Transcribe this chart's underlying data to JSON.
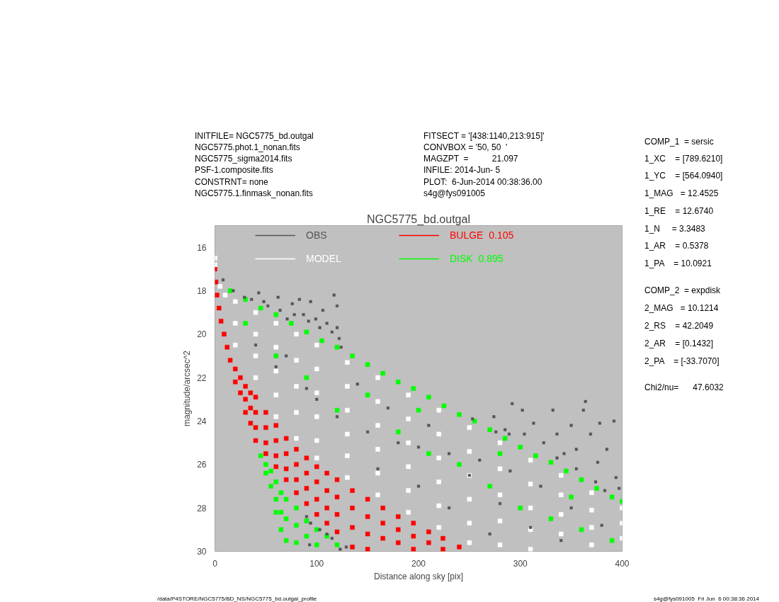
{
  "chart_data": {
    "type": "scatter",
    "title": "NGC5775_bd.outgal",
    "xlabel": "Distance along sky [pix]",
    "ylabel": "magnitude/arcsec^2",
    "xlim": [
      0,
      400
    ],
    "xticks": [
      0,
      100,
      200,
      300,
      400
    ],
    "ylim": [
      30,
      15
    ],
    "yticks": [
      16,
      18,
      20,
      22,
      24,
      26,
      28,
      30
    ],
    "grid": false,
    "legend": "top",
    "marker": "square",
    "series": [
      {
        "name": "OBS",
        "color": "#555555",
        "x": [
          8,
          18,
          29,
          36,
          43,
          48,
          52,
          62,
          64,
          71,
          76,
          78,
          83,
          87,
          92,
          94,
          99,
          103,
          106,
          110,
          115,
          117,
          120,
          120,
          122,
          124,
          253,
          274,
          276,
          285,
          289,
          292,
          302,
          304,
          313,
          323,
          332,
          336,
          336,
          343,
          350,
          355,
          355,
          362,
          364,
          369,
          374,
          376,
          378,
          383,
          385,
          392,
          394,
          397,
          40,
          60,
          70,
          90,
          100,
          120,
          140,
          150,
          160,
          170,
          180,
          200,
          200,
          210,
          230,
          230,
          250,
          260,
          270,
          280,
          290,
          310,
          320,
          340,
          350,
          380,
          90,
          93,
          94,
          103,
          110,
          115,
          123,
          129
        ],
        "values": [
          17.5,
          18.0,
          18.3,
          18.4,
          18.1,
          18.5,
          18.7,
          18.3,
          18.9,
          19.3,
          18.6,
          19.1,
          18.4,
          19.1,
          19.4,
          18.5,
          19.3,
          19.7,
          18.9,
          19.5,
          19.9,
          18.2,
          18.7,
          19.7,
          20.2,
          20.6,
          23.9,
          23.8,
          24.5,
          24.4,
          24.6,
          23.2,
          23.5,
          24.6,
          24.1,
          25.0,
          23.5,
          24.6,
          25.7,
          25.5,
          24.2,
          25.3,
          26.2,
          23.5,
          23.1,
          24.6,
          26.8,
          25.9,
          24.1,
          27.2,
          25.3,
          24.0,
          26.6,
          27.1,
          20.5,
          21.5,
          21.0,
          22.5,
          23.0,
          23.8,
          22.3,
          24.5,
          26.2,
          23.4,
          25.0,
          25.2,
          27.0,
          24.2,
          25.5,
          28.0,
          26.5,
          25.8,
          29.2,
          27.8,
          26.3,
          28.9,
          27.0,
          29.5,
          28.0,
          28.8,
          28.4,
          29.7,
          28.7,
          29.0,
          29.2,
          29.4,
          29.9,
          29.8
        ]
      },
      {
        "name": "MODEL",
        "color": "#ffffff",
        "x": [
          0,
          0,
          5,
          10,
          20,
          20,
          20,
          40,
          40,
          40,
          40,
          60,
          60,
          60,
          60,
          60,
          80,
          80,
          80,
          80,
          80,
          100,
          100,
          100,
          100,
          100,
          100,
          130,
          130,
          130,
          130,
          130,
          130,
          160,
          160,
          160,
          160,
          160,
          160,
          190,
          190,
          190,
          190,
          190,
          190,
          220,
          220,
          220,
          220,
          220,
          220,
          250,
          250,
          250,
          250,
          250,
          250,
          280,
          280,
          280,
          280,
          280,
          310,
          310,
          310,
          310,
          310,
          340,
          340,
          340,
          340,
          370,
          370,
          370,
          370,
          400,
          400,
          400
        ],
        "values": [
          16.5,
          16.8,
          17.8,
          18.2,
          18.5,
          19.5,
          20.5,
          19.0,
          20.0,
          21.0,
          22.0,
          19.5,
          20.6,
          21.7,
          22.8,
          23.8,
          20.0,
          21.2,
          22.4,
          23.6,
          24.8,
          20.5,
          21.6,
          22.7,
          23.8,
          24.9,
          25.7,
          21.3,
          22.4,
          23.5,
          24.6,
          25.6,
          26.6,
          22.0,
          23.1,
          24.2,
          25.3,
          26.4,
          27.4,
          22.8,
          23.9,
          25.0,
          26.1,
          27.2,
          28.2,
          23.5,
          24.6,
          25.7,
          26.8,
          27.9,
          28.9,
          24.3,
          25.4,
          26.5,
          27.6,
          28.7,
          29.6,
          25.0,
          26.2,
          27.4,
          28.6,
          29.7,
          25.8,
          26.9,
          28.0,
          29.0,
          29.9,
          26.5,
          27.4,
          28.3,
          29.2,
          27.3,
          28.1,
          28.9,
          29.7,
          28.0,
          28.7,
          29.4
        ]
      },
      {
        "name": "BULGE  0.105",
        "color": "#ff0000",
        "x": [
          0,
          1,
          2,
          4,
          6,
          9,
          12,
          15,
          20,
          20,
          25,
          25,
          30,
          30,
          30,
          35,
          35,
          35,
          40,
          40,
          40,
          40,
          50,
          50,
          50,
          50,
          60,
          60,
          60,
          60,
          70,
          70,
          70,
          70,
          80,
          80,
          80,
          80,
          90,
          90,
          90,
          90,
          100,
          100,
          100,
          100,
          110,
          110,
          110,
          110,
          120,
          120,
          120,
          120,
          135,
          135,
          135,
          135,
          150,
          150,
          150,
          150,
          165,
          165,
          165,
          180,
          180,
          180,
          195,
          195,
          195,
          210,
          210,
          224,
          224,
          240
        ],
        "values": [
          17.0,
          17.6,
          18.2,
          18.8,
          19.4,
          20.0,
          20.6,
          21.2,
          21.6,
          22.2,
          22.0,
          22.7,
          22.4,
          23.0,
          23.6,
          22.7,
          23.4,
          24.1,
          22.9,
          23.6,
          24.3,
          24.9,
          23.6,
          24.3,
          25.0,
          25.5,
          24.2,
          24.9,
          25.6,
          26.1,
          24.8,
          25.5,
          26.2,
          26.7,
          25.3,
          26.0,
          26.7,
          27.3,
          25.7,
          26.4,
          27.1,
          27.8,
          26.1,
          26.8,
          27.6,
          28.3,
          26.4,
          27.2,
          28.0,
          28.7,
          26.7,
          27.5,
          28.3,
          29.1,
          27.2,
          28.0,
          28.9,
          29.8,
          27.6,
          28.4,
          29.2,
          29.9,
          28.0,
          28.7,
          29.4,
          28.4,
          29.0,
          29.6,
          28.7,
          29.3,
          29.9,
          29.1,
          29.6,
          29.4,
          29.9,
          29.8
        ]
      },
      {
        "name": "DISK  0.895",
        "color": "#00ff00",
        "x": [
          15,
          30,
          45,
          60,
          75,
          90,
          105,
          120,
          135,
          150,
          165,
          180,
          195,
          210,
          225,
          240,
          255,
          270,
          285,
          300,
          315,
          330,
          345,
          360,
          375,
          390,
          400,
          45,
          50,
          50,
          55,
          55,
          60,
          60,
          60,
          65,
          65,
          65,
          70,
          70,
          70,
          80,
          80,
          80,
          90,
          90,
          100,
          100,
          110,
          120,
          30,
          60,
          90,
          120,
          150,
          180,
          200,
          210,
          240,
          270,
          280,
          300,
          330,
          350,
          360,
          390
        ],
        "values": [
          18.0,
          18.4,
          18.8,
          19.1,
          19.5,
          19.9,
          20.3,
          20.6,
          21.0,
          21.4,
          21.8,
          22.2,
          22.5,
          22.9,
          23.3,
          23.7,
          24.0,
          24.4,
          24.8,
          25.2,
          25.6,
          25.9,
          26.3,
          26.7,
          27.1,
          27.5,
          27.7,
          25.6,
          26.0,
          26.4,
          26.3,
          27.0,
          26.8,
          27.6,
          28.2,
          27.3,
          28.2,
          29.0,
          27.6,
          28.5,
          29.5,
          28.0,
          28.8,
          29.6,
          28.6,
          29.3,
          29.0,
          29.7,
          29.3,
          29.7,
          19.5,
          21.0,
          22.0,
          23.5,
          22.8,
          24.5,
          23.5,
          25.5,
          26.0,
          27.0,
          25.5,
          28.0,
          28.5,
          27.5,
          29.0,
          29.5
        ]
      }
    ],
    "annotations": [
      "INITFILE= NGC5775_bd.outgal",
      "NGC5775.phot.1_nonan.fits",
      "NGC5775_sigma2014.fits",
      "PSF-1.composite.fits",
      "CONSTRNT= none",
      "NGC5775.1.finmask_nonan.fits",
      "FITSECT = '[438:1140,213:915]'",
      "CONVBOX = '50, 50  '",
      "MAGZPT  =          21.097",
      "INFILE: 2014-Jun- 5",
      "PLOT:  6-Jun-2014 00:38:36.00",
      "s4g@fys091005",
      "COMP_1  = sersic",
      "1_XC    = [789.6210]",
      "1_YC    = [564.0940]",
      "1_MAG   = 12.4525",
      "1_RE    = 12.6740",
      "1_N     = 3.3483",
      "1_AR    = 0.5378",
      "1_PA    = 10.0921",
      "COMP_2  = expdisk",
      "2_MAG   = 10.1214",
      "2_RS    = 42.2049",
      "2_AR    = [0.1432]",
      "2_PA    = [-33.7070]",
      "Chi2/nu=      47.6032",
      "/data/P4STORE/NGC5775/BD_NS/NGC5775_bd.outgal_profile",
      "s4g@fys091005  Fri Jun  6 00:38:36 2014"
    ]
  }
}
